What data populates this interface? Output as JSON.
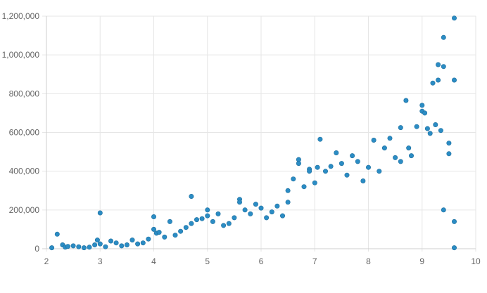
{
  "chart_data": {
    "type": "scatter",
    "title": "",
    "xlabel": "",
    "ylabel": "",
    "xlim": [
      2,
      10
    ],
    "ylim": [
      0,
      1200000
    ],
    "x_ticks": [
      2,
      3,
      4,
      5,
      6,
      7,
      8,
      9,
      10
    ],
    "y_ticks": [
      0,
      200000,
      400000,
      600000,
      800000,
      1000000,
      1200000
    ],
    "x_tick_labels": [
      "2",
      "3",
      "4",
      "5",
      "6",
      "7",
      "8",
      "9",
      "10"
    ],
    "y_tick_labels": [
      "0",
      "200,000",
      "400,000",
      "600,000",
      "800,000",
      "1,000,000",
      "1,200,000"
    ],
    "grid": true,
    "legend": "none",
    "point_color": "#2b8cc4",
    "point_edge_color": "#1f6f9e",
    "series": [
      {
        "points": [
          [
            2.1,
            5000
          ],
          [
            2.2,
            75000
          ],
          [
            2.3,
            20000
          ],
          [
            2.35,
            8000
          ],
          [
            2.4,
            12000
          ],
          [
            2.5,
            15000
          ],
          [
            2.6,
            10000
          ],
          [
            2.7,
            5000
          ],
          [
            2.8,
            8000
          ],
          [
            2.9,
            20000
          ],
          [
            2.95,
            45000
          ],
          [
            3.0,
            185000
          ],
          [
            3.0,
            25000
          ],
          [
            3.1,
            10000
          ],
          [
            3.2,
            40000
          ],
          [
            3.3,
            30000
          ],
          [
            3.4,
            15000
          ],
          [
            3.5,
            20000
          ],
          [
            3.6,
            45000
          ],
          [
            3.7,
            25000
          ],
          [
            3.8,
            30000
          ],
          [
            3.9,
            50000
          ],
          [
            4.0,
            165000
          ],
          [
            4.0,
            100000
          ],
          [
            4.05,
            80000
          ],
          [
            4.1,
            85000
          ],
          [
            4.2,
            60000
          ],
          [
            4.3,
            140000
          ],
          [
            4.4,
            70000
          ],
          [
            4.5,
            90000
          ],
          [
            4.6,
            110000
          ],
          [
            4.7,
            270000
          ],
          [
            4.7,
            130000
          ],
          [
            4.8,
            150000
          ],
          [
            4.9,
            155000
          ],
          [
            5.0,
            200000
          ],
          [
            5.0,
            170000
          ],
          [
            5.1,
            140000
          ],
          [
            5.2,
            180000
          ],
          [
            5.3,
            120000
          ],
          [
            5.4,
            130000
          ],
          [
            5.5,
            160000
          ],
          [
            5.6,
            255000
          ],
          [
            5.6,
            240000
          ],
          [
            5.7,
            200000
          ],
          [
            5.8,
            180000
          ],
          [
            5.9,
            230000
          ],
          [
            6.0,
            210000
          ],
          [
            6.1,
            160000
          ],
          [
            6.2,
            190000
          ],
          [
            6.3,
            220000
          ],
          [
            6.4,
            170000
          ],
          [
            6.5,
            240000
          ],
          [
            6.5,
            300000
          ],
          [
            6.6,
            360000
          ],
          [
            6.7,
            460000
          ],
          [
            6.7,
            440000
          ],
          [
            6.8,
            320000
          ],
          [
            6.9,
            410000
          ],
          [
            6.9,
            400000
          ],
          [
            7.0,
            340000
          ],
          [
            7.05,
            420000
          ],
          [
            7.1,
            565000
          ],
          [
            7.2,
            400000
          ],
          [
            7.3,
            425000
          ],
          [
            7.4,
            495000
          ],
          [
            7.5,
            440000
          ],
          [
            7.6,
            380000
          ],
          [
            7.7,
            480000
          ],
          [
            7.8,
            450000
          ],
          [
            7.9,
            350000
          ],
          [
            8.0,
            420000
          ],
          [
            8.1,
            560000
          ],
          [
            8.2,
            400000
          ],
          [
            8.3,
            520000
          ],
          [
            8.4,
            570000
          ],
          [
            8.5,
            470000
          ],
          [
            8.6,
            450000
          ],
          [
            8.6,
            625000
          ],
          [
            8.7,
            765000
          ],
          [
            8.75,
            520000
          ],
          [
            8.8,
            480000
          ],
          [
            8.9,
            630000
          ],
          [
            9.0,
            740000
          ],
          [
            9.0,
            710000
          ],
          [
            9.05,
            700000
          ],
          [
            9.1,
            620000
          ],
          [
            9.15,
            595000
          ],
          [
            9.2,
            855000
          ],
          [
            9.25,
            640000
          ],
          [
            9.3,
            950000
          ],
          [
            9.3,
            870000
          ],
          [
            9.35,
            610000
          ],
          [
            9.4,
            1090000
          ],
          [
            9.4,
            940000
          ],
          [
            9.4,
            200000
          ],
          [
            9.5,
            545000
          ],
          [
            9.5,
            490000
          ],
          [
            9.6,
            1190000
          ],
          [
            9.6,
            870000
          ],
          [
            9.6,
            140000
          ],
          [
            9.6,
            5000
          ]
        ]
      }
    ]
  }
}
